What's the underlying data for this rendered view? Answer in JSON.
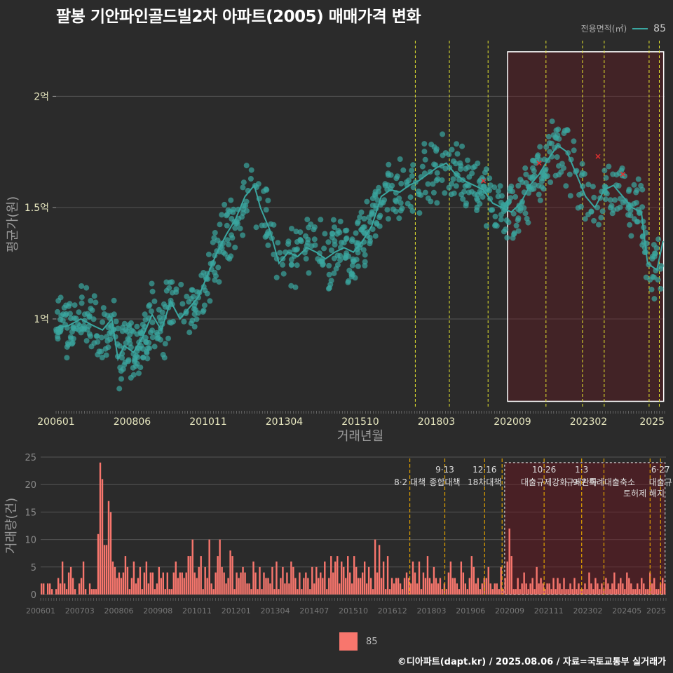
{
  "title": "팔봉 기안파인골드빌2차 아파트(2005) 매매가격 변화",
  "legend_top": {
    "title": "전용면적(㎡)",
    "value": "85",
    "color": "#3aa6a0"
  },
  "legend_bottom": {
    "value": "85",
    "color": "#f8766d"
  },
  "footer": "©디아파트(dapt.kr) / 2025.08.06 / 자료=국토교통부 실거래가",
  "chart_data": [
    {
      "type": "scatter",
      "xlabel": "거래년월",
      "ylabel": "평균가(원)",
      "x_tick_labels": [
        "200601",
        "200806",
        "201011",
        "201304",
        "201510",
        "201803",
        "202009",
        "202302",
        "2025"
      ],
      "y_ticks": [
        {
          "value": 1.0,
          "label": "1억"
        },
        {
          "value": 1.5,
          "label": "1.5억"
        },
        {
          "value": 2.0,
          "label": "2억"
        }
      ],
      "ylim": [
        0.6,
        2.25
      ],
      "xlim": [
        2006.0,
        2025.65
      ],
      "grid": true,
      "series": [
        {
          "name": "85",
          "color": "#3aa6a0"
        }
      ],
      "avg_line": [
        [
          2006.0,
          0.96
        ],
        [
          2006.4,
          0.97
        ],
        [
          2006.8,
          1.0
        ],
        [
          2007.2,
          0.97
        ],
        [
          2007.5,
          0.95
        ],
        [
          2007.8,
          1.0
        ],
        [
          2008.0,
          0.82
        ],
        [
          2008.2,
          0.88
        ],
        [
          2008.5,
          0.85
        ],
        [
          2008.8,
          0.92
        ],
        [
          2009.1,
          1.02
        ],
        [
          2009.4,
          0.95
        ],
        [
          2009.7,
          1.08
        ],
        [
          2010.0,
          1.0
        ],
        [
          2010.3,
          1.05
        ],
        [
          2010.6,
          1.1
        ],
        [
          2010.9,
          1.2
        ],
        [
          2011.2,
          1.3
        ],
        [
          2011.5,
          1.38
        ],
        [
          2011.8,
          1.45
        ],
        [
          2012.1,
          1.55
        ],
        [
          2012.4,
          1.6
        ],
        [
          2012.6,
          1.5
        ],
        [
          2012.9,
          1.4
        ],
        [
          2013.2,
          1.25
        ],
        [
          2013.5,
          1.3
        ],
        [
          2013.8,
          1.28
        ],
        [
          2014.1,
          1.32
        ],
        [
          2014.4,
          1.3
        ],
        [
          2014.7,
          1.27
        ],
        [
          2015.0,
          1.3
        ],
        [
          2015.3,
          1.32
        ],
        [
          2015.6,
          1.3
        ],
        [
          2015.9,
          1.35
        ],
        [
          2016.2,
          1.42
        ],
        [
          2016.5,
          1.55
        ],
        [
          2016.8,
          1.58
        ],
        [
          2017.1,
          1.57
        ],
        [
          2017.4,
          1.6
        ],
        [
          2017.7,
          1.62
        ],
        [
          2018.0,
          1.65
        ],
        [
          2018.3,
          1.68
        ],
        [
          2018.6,
          1.7
        ],
        [
          2018.9,
          1.65
        ],
        [
          2019.2,
          1.62
        ],
        [
          2019.5,
          1.6
        ],
        [
          2019.8,
          1.58
        ],
        [
          2020.1,
          1.52
        ],
        [
          2020.4,
          1.5
        ],
        [
          2020.7,
          1.48
        ],
        [
          2021.0,
          1.52
        ],
        [
          2021.3,
          1.6
        ],
        [
          2021.6,
          1.65
        ],
        [
          2021.9,
          1.72
        ],
        [
          2022.2,
          1.78
        ],
        [
          2022.5,
          1.75
        ],
        [
          2022.8,
          1.65
        ],
        [
          2023.1,
          1.55
        ],
        [
          2023.4,
          1.5
        ],
        [
          2023.7,
          1.58
        ],
        [
          2024.0,
          1.6
        ],
        [
          2024.3,
          1.55
        ],
        [
          2024.6,
          1.5
        ],
        [
          2024.9,
          1.48
        ],
        [
          2025.1,
          1.25
        ],
        [
          2025.4,
          1.22
        ],
        [
          2025.6,
          1.35
        ]
      ],
      "outliers": [
        [
          2019.8,
          1.62
        ],
        [
          2021.6,
          1.7
        ],
        [
          2023.5,
          1.73
        ],
        [
          2024.3,
          1.65
        ]
      ],
      "highlight_box": {
        "x_start": 2020.58,
        "x_end": 2025.62,
        "y_start": 0.63,
        "y_end": 2.2
      }
    },
    {
      "type": "bar",
      "ylabel": "거래량(건)",
      "x_tick_labels": [
        "200601",
        "200703",
        "200806",
        "200908",
        "201011",
        "201201",
        "201304",
        "201407",
        "201510",
        "201612",
        "201803",
        "201906",
        "202009",
        "202111",
        "202302",
        "202405",
        "2025"
      ],
      "y_ticks": [
        0,
        5,
        10,
        15,
        20,
        25
      ],
      "ylim": [
        0,
        25
      ],
      "xlim": [
        2006.0,
        2025.65
      ],
      "series": [
        {
          "name": "85",
          "color": "#f8766d"
        }
      ],
      "values": [
        2,
        2,
        0,
        2,
        2,
        1,
        0,
        1,
        3,
        2,
        6,
        2,
        1,
        4,
        5,
        3,
        1,
        0,
        2,
        3,
        6,
        1,
        0,
        2,
        1,
        1,
        1,
        11,
        24,
        21,
        9,
        9,
        17,
        15,
        6,
        5,
        3,
        4,
        3,
        4,
        7,
        5,
        1,
        3,
        6,
        2,
        3,
        5,
        1,
        4,
        6,
        2,
        4,
        4,
        1,
        2,
        5,
        3,
        4,
        1,
        4,
        1,
        1,
        4,
        6,
        3,
        4,
        4,
        3,
        4,
        7,
        7,
        10,
        4,
        3,
        5,
        7,
        1,
        5,
        3,
        10,
        2,
        1,
        4,
        7,
        10,
        5,
        4,
        2,
        3,
        8,
        7,
        1,
        4,
        3,
        4,
        5,
        4,
        2,
        2,
        1,
        6,
        4,
        1,
        5,
        1,
        4,
        3,
        3,
        2,
        5,
        1,
        6,
        1,
        3,
        5,
        2,
        4,
        2,
        6,
        5,
        3,
        1,
        4,
        1,
        3,
        4,
        3,
        1,
        5,
        2,
        5,
        3,
        4,
        3,
        6,
        1,
        3,
        7,
        4,
        6,
        7,
        2,
        6,
        5,
        3,
        7,
        4,
        2,
        7,
        5,
        3,
        3,
        4,
        6,
        2,
        5,
        3,
        1,
        10,
        4,
        9,
        3,
        6,
        1,
        7,
        1,
        3,
        2,
        3,
        3,
        2,
        1,
        3,
        4,
        3,
        2,
        6,
        4,
        2,
        6,
        1,
        4,
        3,
        7,
        3,
        2,
        5,
        3,
        2,
        3,
        1,
        2,
        1,
        4,
        6,
        3,
        3,
        2,
        1,
        6,
        4,
        2,
        1,
        3,
        7,
        5,
        2,
        3,
        1,
        2,
        3,
        3,
        5,
        2,
        1,
        2,
        2,
        1,
        5,
        1,
        3,
        6,
        12,
        7,
        1,
        1,
        3,
        1,
        2,
        4,
        2,
        1,
        2,
        3,
        1,
        5,
        2,
        3,
        2,
        1,
        2,
        2,
        1,
        3,
        1,
        3,
        2,
        1,
        3,
        1,
        1,
        2,
        1,
        3,
        1,
        2,
        1,
        1,
        2,
        1,
        4,
        2,
        1,
        3,
        2,
        1,
        2,
        1,
        3,
        2,
        1,
        2,
        4,
        1,
        2,
        3,
        2,
        1,
        4,
        3,
        2,
        1,
        1,
        2,
        1,
        3,
        2,
        1,
        1,
        4,
        2,
        3,
        1,
        1,
        2,
        3,
        2
      ],
      "policy_lines": [
        {
          "x": 2017.6,
          "label1": "",
          "label2": "8·2 대책"
        },
        {
          "x": 2018.7,
          "label1": "9·13",
          "label2": "종합대책"
        },
        {
          "x": 2019.95,
          "label1": "12·16",
          "label2": "18차대책"
        },
        {
          "x": 2020.5,
          "label1": "",
          "label2": ""
        },
        {
          "x": 2021.82,
          "label1": "10·26",
          "label2": "대출규제강화"
        },
        {
          "x": 2023.0,
          "label1": "1·3",
          "label2": "규제완화"
        },
        {
          "x": 2023.7,
          "label1": "",
          "label2": "9·7 특례대출축소"
        },
        {
          "x": 2025.15,
          "label1": "",
          "label2": ""
        },
        {
          "x": 2025.48,
          "label1": "6·27",
          "label2": "대출규"
        }
      ],
      "yellow_lines_top": [
        2017.6,
        2018.7,
        2019.95,
        2021.82,
        2023.0,
        2023.7,
        2025.15,
        2025.48
      ],
      "extra_annotation": "토허제 해지",
      "highlight_box": {
        "x_start": 2020.58,
        "x_end": 2025.62
      }
    }
  ]
}
